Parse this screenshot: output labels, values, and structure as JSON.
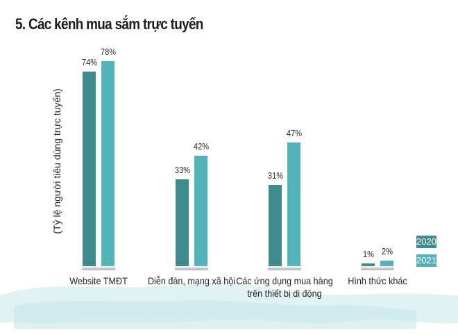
{
  "title": "5. Các kênh mua sắm trực tuyến",
  "colors": {
    "y2020": "#3d8b8c",
    "y2021": "#52b3bb",
    "baseline": "#c4c4c8"
  },
  "legend": [
    {
      "label": "2020",
      "color": "#3d8b8c"
    },
    {
      "label": "2021",
      "color": "#52b3bb"
    }
  ],
  "chart_data": {
    "type": "bar",
    "title": "5. Các kênh mua sắm trực tuyến",
    "xlabel": "",
    "ylabel": "(Tỷ lệ người tiêu dùng trực tuyến)",
    "categories": [
      "Website TMĐT",
      "Diễn đàn, mạng xã hội",
      "Các ứng dụng mua hàng trên thiết bị di động",
      "Hình thức khác"
    ],
    "category_lines": [
      [
        "Website TMĐT"
      ],
      [
        "Diễn đàn, mạng xã hội"
      ],
      [
        "Các ứng dụng mua hàng",
        "trên thiết bị di động"
      ],
      [
        "Hình thức khác"
      ]
    ],
    "series": [
      {
        "name": "2020",
        "values": [
          74,
          33,
          31,
          1
        ],
        "labels": [
          "74%",
          "33%",
          "31%",
          "1%"
        ]
      },
      {
        "name": "2021",
        "values": [
          78,
          42,
          47,
          2
        ],
        "labels": [
          "78%",
          "42%",
          "47%",
          "2%"
        ]
      }
    ],
    "ylim": [
      0,
      80
    ],
    "grid": false,
    "legend_position": "right-bottom"
  }
}
